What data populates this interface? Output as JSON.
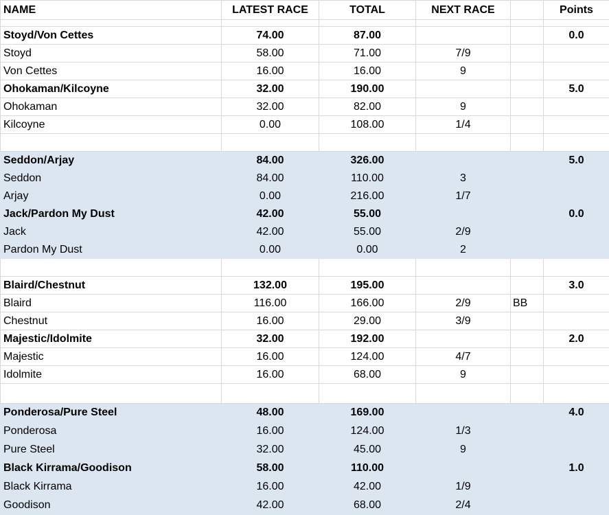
{
  "headers": {
    "name": "NAME",
    "latest": "LATEST RACE",
    "total": "TOTAL",
    "next": "NEXT RACE",
    "extra": "",
    "points": "Points"
  },
  "colors": {
    "shade": "#dce6f1",
    "grid": "#d9d9d9"
  },
  "groups": [
    {
      "shaded": false,
      "rows": [
        {
          "bold": true,
          "name": "Stoyd/Von Cettes",
          "latest": "74.00",
          "total": "87.00",
          "next": "",
          "extra": "",
          "points": "0.0"
        },
        {
          "bold": false,
          "name": "Stoyd",
          "latest": "58.00",
          "total": "71.00",
          "next": "7/9",
          "extra": "",
          "points": ""
        },
        {
          "bold": false,
          "name": "Von Cettes",
          "latest": "16.00",
          "total": "16.00",
          "next": "9",
          "extra": "",
          "points": ""
        },
        {
          "bold": true,
          "name": "Ohokaman/Kilcoyne",
          "latest": "32.00",
          "total": "190.00",
          "next": "",
          "extra": "",
          "points": "5.0"
        },
        {
          "bold": false,
          "name": "Ohokaman",
          "latest": "32.00",
          "total": "82.00",
          "next": "9",
          "extra": "",
          "points": ""
        },
        {
          "bold": false,
          "name": "Kilcoyne",
          "latest": "0.00",
          "total": "108.00",
          "next": "1/4",
          "extra": "",
          "points": ""
        }
      ]
    },
    {
      "shaded": true,
      "rows": [
        {
          "bold": true,
          "name": "Seddon/Arjay",
          "latest": "84.00",
          "total": "326.00",
          "next": "",
          "extra": "",
          "points": "5.0"
        },
        {
          "bold": false,
          "name": "Seddon",
          "latest": "84.00",
          "total": "110.00",
          "next": "3",
          "extra": "",
          "points": ""
        },
        {
          "bold": false,
          "name": "Arjay",
          "latest": "0.00",
          "total": "216.00",
          "next": "1/7",
          "extra": "",
          "points": ""
        },
        {
          "bold": true,
          "name": "Jack/Pardon My Dust",
          "latest": "42.00",
          "total": "55.00",
          "next": "",
          "extra": "",
          "points": "0.0"
        },
        {
          "bold": false,
          "name": "Jack",
          "latest": "42.00",
          "total": "55.00",
          "next": "2/9",
          "extra": "",
          "points": ""
        },
        {
          "bold": false,
          "name": "Pardon My Dust",
          "latest": "0.00",
          "total": "0.00",
          "next": "2",
          "extra": "",
          "points": ""
        }
      ]
    },
    {
      "shaded": false,
      "rows": [
        {
          "bold": true,
          "name": "Blaird/Chestnut",
          "latest": "132.00",
          "total": "195.00",
          "next": "",
          "extra": "",
          "points": "3.0"
        },
        {
          "bold": false,
          "name": "Blaird",
          "latest": "116.00",
          "total": "166.00",
          "next": "2/9",
          "extra": "BB",
          "points": ""
        },
        {
          "bold": false,
          "name": "Chestnut",
          "latest": "16.00",
          "total": "29.00",
          "next": "3/9",
          "extra": "",
          "points": ""
        },
        {
          "bold": true,
          "name": "Majestic/Idolmite",
          "latest": "32.00",
          "total": "192.00",
          "next": "",
          "extra": "",
          "points": "2.0"
        },
        {
          "bold": false,
          "name": "Majestic",
          "latest": "16.00",
          "total": "124.00",
          "next": "4/7",
          "extra": "",
          "points": ""
        },
        {
          "bold": false,
          "name": "Idolmite",
          "latest": "16.00",
          "total": "68.00",
          "next": "9",
          "extra": "",
          "points": ""
        }
      ]
    },
    {
      "shaded": true,
      "rows": [
        {
          "bold": true,
          "name": "Ponderosa/Pure Steel",
          "latest": "48.00",
          "total": "169.00",
          "next": "",
          "extra": "",
          "points": "4.0"
        },
        {
          "bold": false,
          "name": "Ponderosa",
          "latest": "16.00",
          "total": "124.00",
          "next": "1/3",
          "extra": "",
          "points": ""
        },
        {
          "bold": false,
          "name": "Pure Steel",
          "latest": "32.00",
          "total": "45.00",
          "next": "9",
          "extra": "",
          "points": ""
        },
        {
          "bold": true,
          "name": "Black Kirrama/Goodison",
          "latest": "58.00",
          "total": "110.00",
          "next": "",
          "extra": "",
          "points": "1.0"
        },
        {
          "bold": false,
          "name": "Black Kirrama",
          "latest": "16.00",
          "total": "42.00",
          "next": "1/9",
          "extra": "",
          "points": ""
        },
        {
          "bold": false,
          "name": "Goodison",
          "latest": "42.00",
          "total": "68.00",
          "next": "2/4",
          "extra": "",
          "points": ""
        }
      ]
    }
  ]
}
